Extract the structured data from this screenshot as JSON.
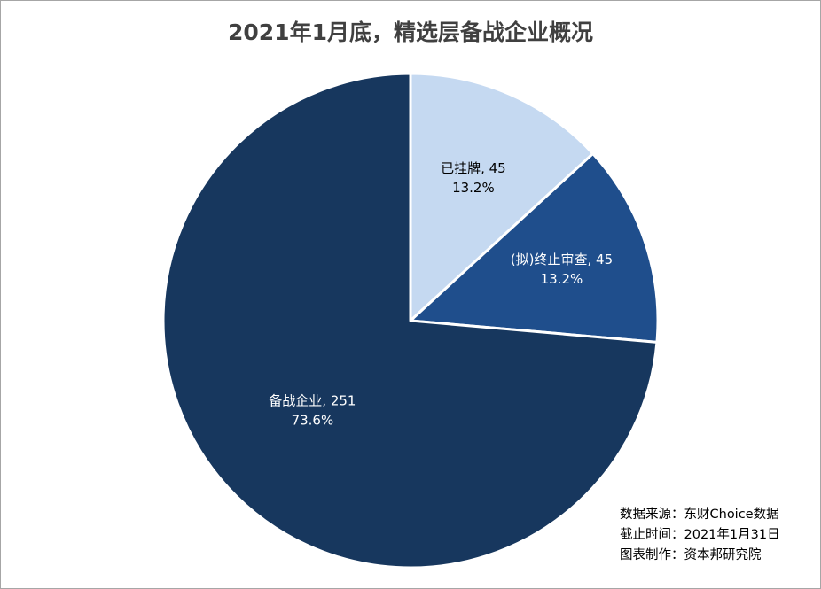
{
  "chart_data": {
    "type": "pie",
    "title": "2021年1月底，精选层备战企业概况",
    "slices": [
      {
        "label": "已挂牌",
        "value": 45,
        "percent": "13.2%",
        "color": "#c5d9f1",
        "text_color": "#000000"
      },
      {
        "label": "(拟)终止审查",
        "value": 45,
        "percent": "13.2%",
        "color": "#1f4e8c",
        "text_color": "#ffffff"
      },
      {
        "label": "备战企业",
        "value": 251,
        "percent": "73.6%",
        "color": "#17375e",
        "text_color": "#ffffff"
      }
    ],
    "start_angle_deg": 0,
    "direction": "clockwise"
  },
  "notes": [
    "数据来源：东财Choice数据",
    "截止时间：2021年1月31日",
    "图表制作：资本邦研究院"
  ]
}
